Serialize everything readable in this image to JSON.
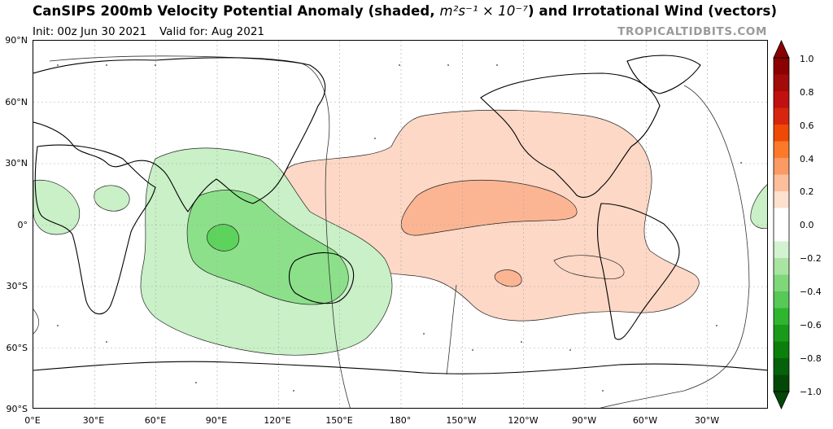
{
  "header": {
    "title_prefix": "CanSIPS 200mb Velocity Potential Anomaly (shaded, ",
    "title_units": "m²s⁻¹ × 10⁻⁷",
    "title_suffix": ") and Irrotational Wind (vectors)",
    "init": "Init: 00z Jun 30 2021",
    "valid": "Valid for: Aug 2021",
    "credit": "TROPICALTIDBITS.COM"
  },
  "axes": {
    "lat_labels": [
      "90°N",
      "60°N",
      "30°N",
      "0°",
      "30°S",
      "60°S",
      "90°S"
    ],
    "lon_labels": [
      "0°E",
      "30°E",
      "60°E",
      "90°E",
      "120°E",
      "150°E",
      "180°",
      "150°W",
      "120°W",
      "90°W",
      "60°W",
      "30°W"
    ]
  },
  "colorbar": {
    "labels": [
      "1.0",
      "0.8",
      "0.6",
      "0.4",
      "0.2",
      "0.0",
      "−0.2",
      "−0.4",
      "−0.6",
      "−0.8",
      "−1.0"
    ],
    "colors_top_to_bottom": [
      "#8b0000",
      "#a30a0a",
      "#c01010",
      "#d8250d",
      "#ee4a05",
      "#fa7a2a",
      "#fb9a64",
      "#fdbe9c",
      "#fee0cf",
      "#ffffff",
      "#ffffff",
      "#d3f2cf",
      "#a9e4a3",
      "#7fd77a",
      "#57c957",
      "#2eb62e",
      "#1a9a1a",
      "#0b7f0b",
      "#05620a",
      "#034806"
    ]
  },
  "regions": {
    "positive_anomaly_color": "#fdd8c6",
    "positive_core_color": "#fcb593",
    "negative_anomaly_color": "#c9f0c6",
    "negative_mid_color": "#8ce08a",
    "negative_core_color": "#5ed35c"
  }
}
